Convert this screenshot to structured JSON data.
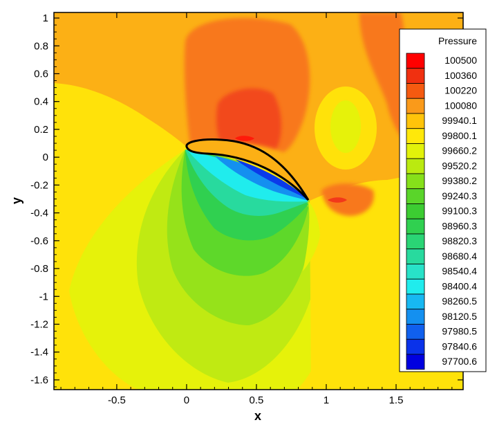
{
  "chart_data": {
    "type": "contour",
    "title": "",
    "xlabel": "x",
    "ylabel": "y",
    "xlim": [
      -0.95,
      1.98
    ],
    "ylim": [
      -1.67,
      1.04
    ],
    "xticks": [
      -0.5,
      0,
      0.5,
      1,
      1.5
    ],
    "xtick_labels": [
      "-0.5",
      "0",
      "0.5",
      "1",
      "1.5"
    ],
    "yticks": [
      1,
      0.8,
      0.6,
      0.4,
      0.2,
      0,
      -0.2,
      -0.4,
      -0.6,
      -0.8,
      -1,
      -1.2,
      -1.4,
      -1.6
    ],
    "ytick_labels": [
      "1",
      "0.8",
      "0.6",
      "0.4",
      "0.2",
      "0",
      "-0.2",
      "-0.4",
      "-0.6",
      "-0.8",
      "-1",
      "-1.2",
      "-1.4",
      "-1.6"
    ],
    "legend": {
      "title": "Pressure",
      "placement": "right",
      "levels": [
        "100500",
        "100360",
        "100220",
        "100080",
        "99940.1",
        "99800.1",
        "99660.2",
        "99520.2",
        "99380.2",
        "99240.3",
        "99100.3",
        "98960.3",
        "98820.3",
        "98680.4",
        "98540.4",
        "98400.4",
        "98260.5",
        "98120.5",
        "97980.5",
        "97840.6",
        "97700.6"
      ],
      "colors": [
        "#ff0000",
        "#f03010",
        "#f55a10",
        "#fa9a1a",
        "#ffc40a",
        "#ffe80a",
        "#e2f20a",
        "#baea10",
        "#86e01a",
        "#5ad52a",
        "#3ccc32",
        "#30d050",
        "#2ad575",
        "#28da9e",
        "#28e2c8",
        "#20eced",
        "#17b8f2",
        "#1490f0",
        "#1060ee",
        "#0a32ea",
        "#0000e0"
      ]
    },
    "airfoil": {
      "leading_edge": [
        0.0,
        0.05
      ],
      "trailing_edge": [
        0.88,
        -0.31
      ]
    },
    "grid": false
  }
}
